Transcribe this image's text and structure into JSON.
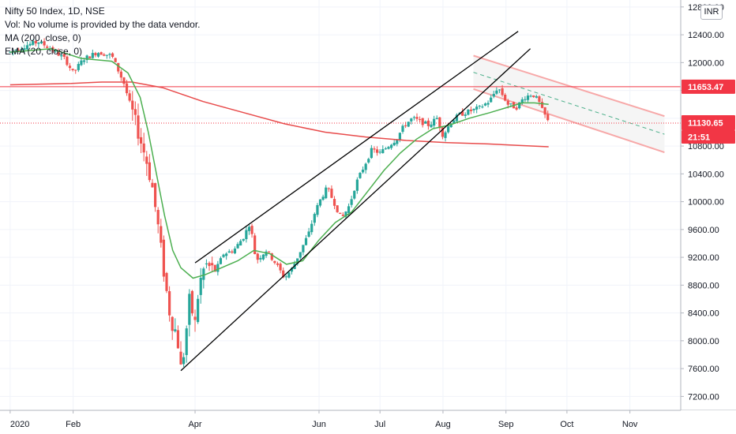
{
  "legend": {
    "title": "Nifty 50 Index, 1D, NSE",
    "vol": "Vol: No volume is provided by the data vendor.",
    "ma": "MA (200, close, 0)",
    "ema": "EMA (20, close, 0)"
  },
  "currency": "INR",
  "badges": {
    "horizontal_line": "11653.47",
    "last_price": "11130.65",
    "countdown": "21:51"
  },
  "colors": {
    "up": "#26a69a",
    "down": "#ef5350",
    "ma200": "#e84b4b",
    "ema20": "#4caf50",
    "hline": "#f23645",
    "channel": "#f7a8a8",
    "wedge": "#000000"
  },
  "chart_data": {
    "type": "candlestick",
    "title": "Nifty 50 Index, 1D, NSE",
    "y_ticks": [
      7200,
      7600,
      8000,
      8400,
      8800,
      9200,
      9600,
      10000,
      10400,
      10800,
      11200,
      11600,
      12000,
      12400,
      12800
    ],
    "y_tick_labels": [
      "7200.00",
      "7600.00",
      "8000.00",
      "8400.00",
      "8800.00",
      "9200.00",
      "9600.00",
      "10000.00",
      "10400.00",
      "10800.00",
      "11200.00",
      "11600.00",
      "12000.00",
      "12400.00",
      "12800.00"
    ],
    "ylim": [
      7000,
      12900
    ],
    "x_labels": [
      "2020",
      "Feb",
      "Apr",
      "Jun",
      "Jul",
      "Aug",
      "Sep",
      "Oct",
      "Nov"
    ],
    "x_label_days": [
      0,
      31,
      91,
      152,
      182,
      213,
      244,
      274,
      305
    ],
    "xlim_days": [
      -5,
      330
    ],
    "horizontal_line": 11653.47,
    "last_price": 11130.65,
    "price_path": [
      [
        0,
        12150
      ],
      [
        8,
        12250
      ],
      [
        14,
        12300
      ],
      [
        20,
        12200
      ],
      [
        27,
        12050
      ],
      [
        31,
        11850
      ],
      [
        36,
        12050
      ],
      [
        43,
        12150
      ],
      [
        50,
        12100
      ],
      [
        56,
        11700
      ],
      [
        60,
        11300
      ],
      [
        63,
        11000
      ],
      [
        67,
        10600
      ],
      [
        70,
        10200
      ],
      [
        73,
        9600
      ],
      [
        76,
        8900
      ],
      [
        79,
        8300
      ],
      [
        82,
        8100
      ],
      [
        84,
        7610
      ],
      [
        86,
        7900
      ],
      [
        88,
        8600
      ],
      [
        91,
        8250
      ],
      [
        93,
        8800
      ],
      [
        96,
        9100
      ],
      [
        101,
        9000
      ],
      [
        105,
        9250
      ],
      [
        110,
        9300
      ],
      [
        115,
        9500
      ],
      [
        118,
        9700
      ],
      [
        121,
        9150
      ],
      [
        126,
        9300
      ],
      [
        131,
        9100
      ],
      [
        135,
        8900
      ],
      [
        139,
        9050
      ],
      [
        143,
        9300
      ],
      [
        147,
        9550
      ],
      [
        150,
        9850
      ],
      [
        153,
        10050
      ],
      [
        156,
        10200
      ],
      [
        160,
        9950
      ],
      [
        163,
        9750
      ],
      [
        167,
        9950
      ],
      [
        170,
        10250
      ],
      [
        174,
        10500
      ],
      [
        178,
        10750
      ],
      [
        182,
        10700
      ],
      [
        186,
        10800
      ],
      [
        190,
        10900
      ],
      [
        194,
        11100
      ],
      [
        198,
        11200
      ],
      [
        202,
        11150
      ],
      [
        206,
        11100
      ],
      [
        210,
        11200
      ],
      [
        213,
        10950
      ],
      [
        217,
        11150
      ],
      [
        221,
        11250
      ],
      [
        226,
        11300
      ],
      [
        231,
        11350
      ],
      [
        236,
        11450
      ],
      [
        240,
        11650
      ],
      [
        242,
        11550
      ],
      [
        245,
        11400
      ],
      [
        249,
        11350
      ],
      [
        253,
        11500
      ],
      [
        257,
        11550
      ],
      [
        260,
        11450
      ],
      [
        262,
        11300
      ],
      [
        264,
        11200
      ],
      [
        265,
        11130
      ]
    ],
    "ma200_path": [
      [
        0,
        11680
      ],
      [
        15,
        11690
      ],
      [
        30,
        11700
      ],
      [
        45,
        11720
      ],
      [
        60,
        11720
      ],
      [
        75,
        11640
      ],
      [
        95,
        11440
      ],
      [
        115,
        11280
      ],
      [
        135,
        11120
      ],
      [
        155,
        11000
      ],
      [
        175,
        10930
      ],
      [
        195,
        10880
      ],
      [
        215,
        10850
      ],
      [
        235,
        10830
      ],
      [
        250,
        10810
      ],
      [
        265,
        10790
      ]
    ],
    "ema20_path": [
      [
        0,
        12150
      ],
      [
        20,
        12200
      ],
      [
        35,
        12060
      ],
      [
        50,
        12020
      ],
      [
        58,
        11850
      ],
      [
        64,
        11500
      ],
      [
        68,
        11000
      ],
      [
        72,
        10400
      ],
      [
        76,
        9800
      ],
      [
        80,
        9300
      ],
      [
        84,
        9050
      ],
      [
        90,
        8900
      ],
      [
        96,
        8950
      ],
      [
        104,
        9050
      ],
      [
        112,
        9150
      ],
      [
        120,
        9300
      ],
      [
        128,
        9250
      ],
      [
        136,
        9100
      ],
      [
        144,
        9150
      ],
      [
        152,
        9450
      ],
      [
        160,
        9700
      ],
      [
        168,
        9850
      ],
      [
        176,
        10150
      ],
      [
        184,
        10450
      ],
      [
        192,
        10700
      ],
      [
        200,
        10900
      ],
      [
        208,
        11050
      ],
      [
        216,
        11100
      ],
      [
        226,
        11200
      ],
      [
        236,
        11280
      ],
      [
        244,
        11350
      ],
      [
        252,
        11420
      ],
      [
        258,
        11420
      ],
      [
        265,
        11400
      ]
    ],
    "wedge_upper": [
      [
        91,
        9120
      ],
      [
        250,
        12450
      ]
    ],
    "wedge_lower": [
      [
        84,
        7570
      ],
      [
        256,
        12200
      ]
    ],
    "channel_top": [
      [
        228,
        12100
      ],
      [
        322,
        11230
      ]
    ],
    "channel_mid": [
      [
        228,
        11860
      ],
      [
        322,
        10970
      ]
    ],
    "channel_bottom": [
      [
        228,
        11620
      ],
      [
        322,
        10710
      ]
    ]
  }
}
